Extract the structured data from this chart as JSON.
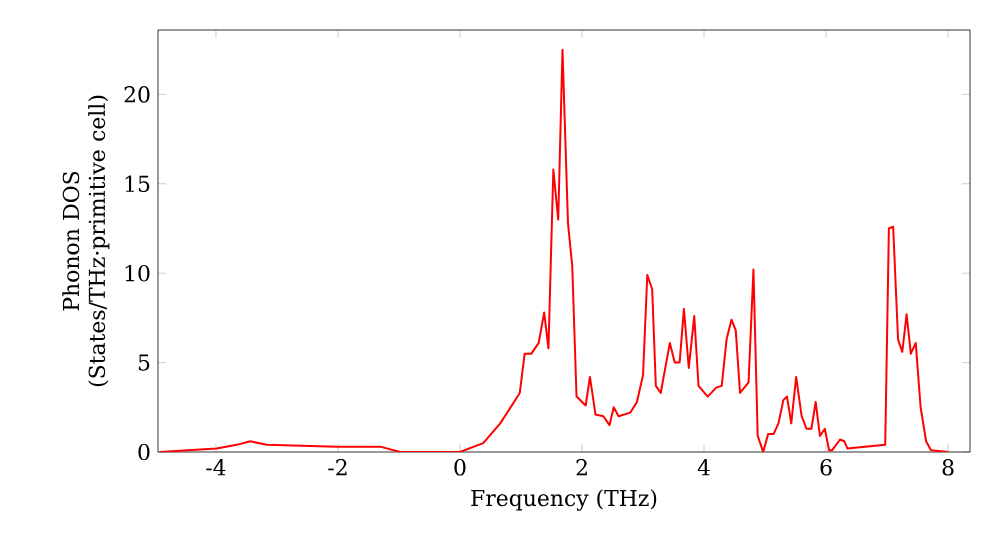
{
  "chart_data": {
    "type": "line",
    "xlabel": "Frequency (THz)",
    "ylabel": "Phonon DOS (States/THz·primitive cell)",
    "xlim": [
      -4.95,
      8.36
    ],
    "ylim": [
      0,
      23.6
    ],
    "xticks": [
      -4,
      -2,
      0,
      2,
      4,
      6,
      8
    ],
    "yticks": [
      0,
      5,
      10,
      15,
      20
    ],
    "grid": false,
    "marker": "none",
    "line_style": "solid",
    "series": [
      {
        "color": "#ff0000",
        "x": [
          -4.92,
          -3.99,
          -3.66,
          -3.44,
          -3.17,
          -2.02,
          -1.31,
          -0.98,
          0,
          0.38,
          0.66,
          0.98,
          1.06,
          1.17,
          1.29,
          1.38,
          1.45,
          1.53,
          1.61,
          1.68,
          1.77,
          1.84,
          1.91,
          2.06,
          2.13,
          2.22,
          2.35,
          2.45,
          2.52,
          2.6,
          2.79,
          2.9,
          3.0,
          3.07,
          3.15,
          3.21,
          3.29,
          3.44,
          3.52,
          3.6,
          3.67,
          3.75,
          3.84,
          3.91,
          4.06,
          4.2,
          4.29,
          4.37,
          4.45,
          4.52,
          4.59,
          4.73,
          4.81,
          4.88,
          4.97,
          5.05,
          5.14,
          5.22,
          5.3,
          5.36,
          5.43,
          5.51,
          5.6,
          5.68,
          5.76,
          5.83,
          5.9,
          5.98,
          6.05,
          6.1,
          6.23,
          6.3,
          6.35,
          6.97,
          7.03,
          7.1,
          7.18,
          7.25,
          7.32,
          7.39,
          7.47,
          7.55,
          7.64,
          7.72,
          8.0
        ],
        "values": [
          0,
          0.2,
          0.4,
          0.6,
          0.4,
          0.3,
          0.3,
          0,
          0,
          0.5,
          1.6,
          3.3,
          5.5,
          5.5,
          6.1,
          7.8,
          5.8,
          15.8,
          13.0,
          22.5,
          12.8,
          10.4,
          3.1,
          2.6,
          4.2,
          2.1,
          2.0,
          1.5,
          2.5,
          2.0,
          2.2,
          2.8,
          4.3,
          9.9,
          9.1,
          3.7,
          3.3,
          6.1,
          5.0,
          5.0,
          8.0,
          4.7,
          7.6,
          3.7,
          3.1,
          3.6,
          3.7,
          6.3,
          7.4,
          6.8,
          3.3,
          3.9,
          10.2,
          0.9,
          0,
          1.0,
          1.0,
          1.6,
          2.9,
          3.1,
          1.6,
          4.2,
          2.0,
          1.3,
          1.3,
          2.8,
          0.9,
          1.3,
          0.1,
          0.1,
          0.7,
          0.6,
          0.2,
          0.4,
          12.5,
          12.6,
          6.3,
          5.6,
          7.7,
          5.5,
          6.1,
          2.5,
          0.6,
          0.1,
          0
        ]
      }
    ]
  }
}
